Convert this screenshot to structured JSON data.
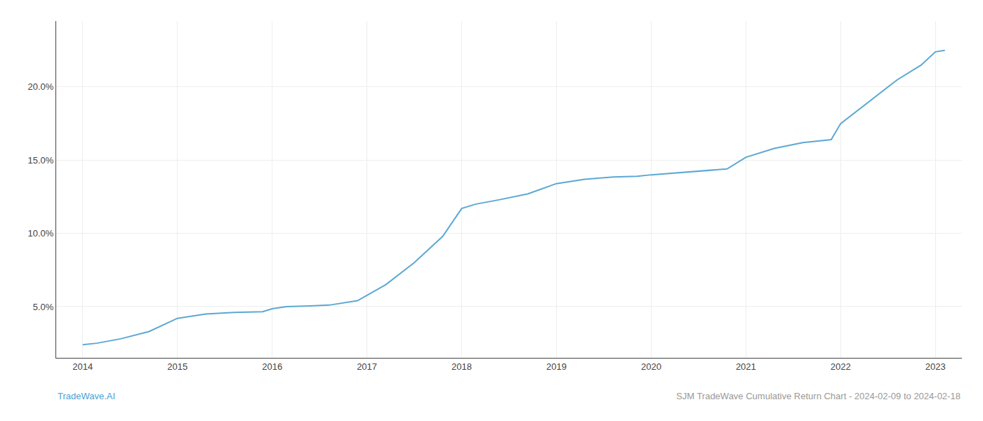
{
  "chart_data": {
    "type": "line",
    "x": [
      2014.0,
      2014.15,
      2014.4,
      2014.7,
      2015.0,
      2015.3,
      2015.6,
      2015.9,
      2016.0,
      2016.15,
      2016.4,
      2016.6,
      2016.9,
      2017.2,
      2017.5,
      2017.8,
      2018.0,
      2018.15,
      2018.4,
      2018.7,
      2019.0,
      2019.3,
      2019.6,
      2019.85,
      2020.0,
      2020.2,
      2020.5,
      2020.8,
      2021.0,
      2021.3,
      2021.6,
      2021.9,
      2022.0,
      2022.3,
      2022.6,
      2022.85,
      2023.0,
      2023.1
    ],
    "values": [
      2.4,
      2.5,
      2.8,
      3.3,
      4.2,
      4.5,
      4.6,
      4.65,
      4.85,
      5.0,
      5.05,
      5.1,
      5.4,
      6.5,
      8.0,
      9.8,
      11.7,
      12.0,
      12.3,
      12.7,
      13.4,
      13.7,
      13.85,
      13.9,
      14.0,
      14.1,
      14.25,
      14.4,
      15.2,
      15.8,
      16.2,
      16.4,
      17.5,
      19.0,
      20.5,
      21.5,
      22.4,
      22.5
    ],
    "color": "#5ba8d4",
    "xlim": [
      2013.72,
      2023.28
    ],
    "xticks": [
      2014,
      2015,
      2016,
      2017,
      2018,
      2019,
      2020,
      2021,
      2022,
      2023
    ],
    "ylim": [
      1.5,
      24.5
    ],
    "yticks": [
      {
        "value": 5.0,
        "label": "5.0%"
      },
      {
        "value": 10.0,
        "label": "10.0%"
      },
      {
        "value": 15.0,
        "label": "15.0%"
      },
      {
        "value": 20.0,
        "label": "20.0%"
      }
    ],
    "grid": true,
    "annotations": [
      {
        "text": "TradeWave.AI",
        "color": "#4a9fd4"
      },
      {
        "text": "SJM TradeWave Cumulative Return Chart - 2024-02-09 to 2024-02-18",
        "color": "#999999"
      }
    ]
  }
}
